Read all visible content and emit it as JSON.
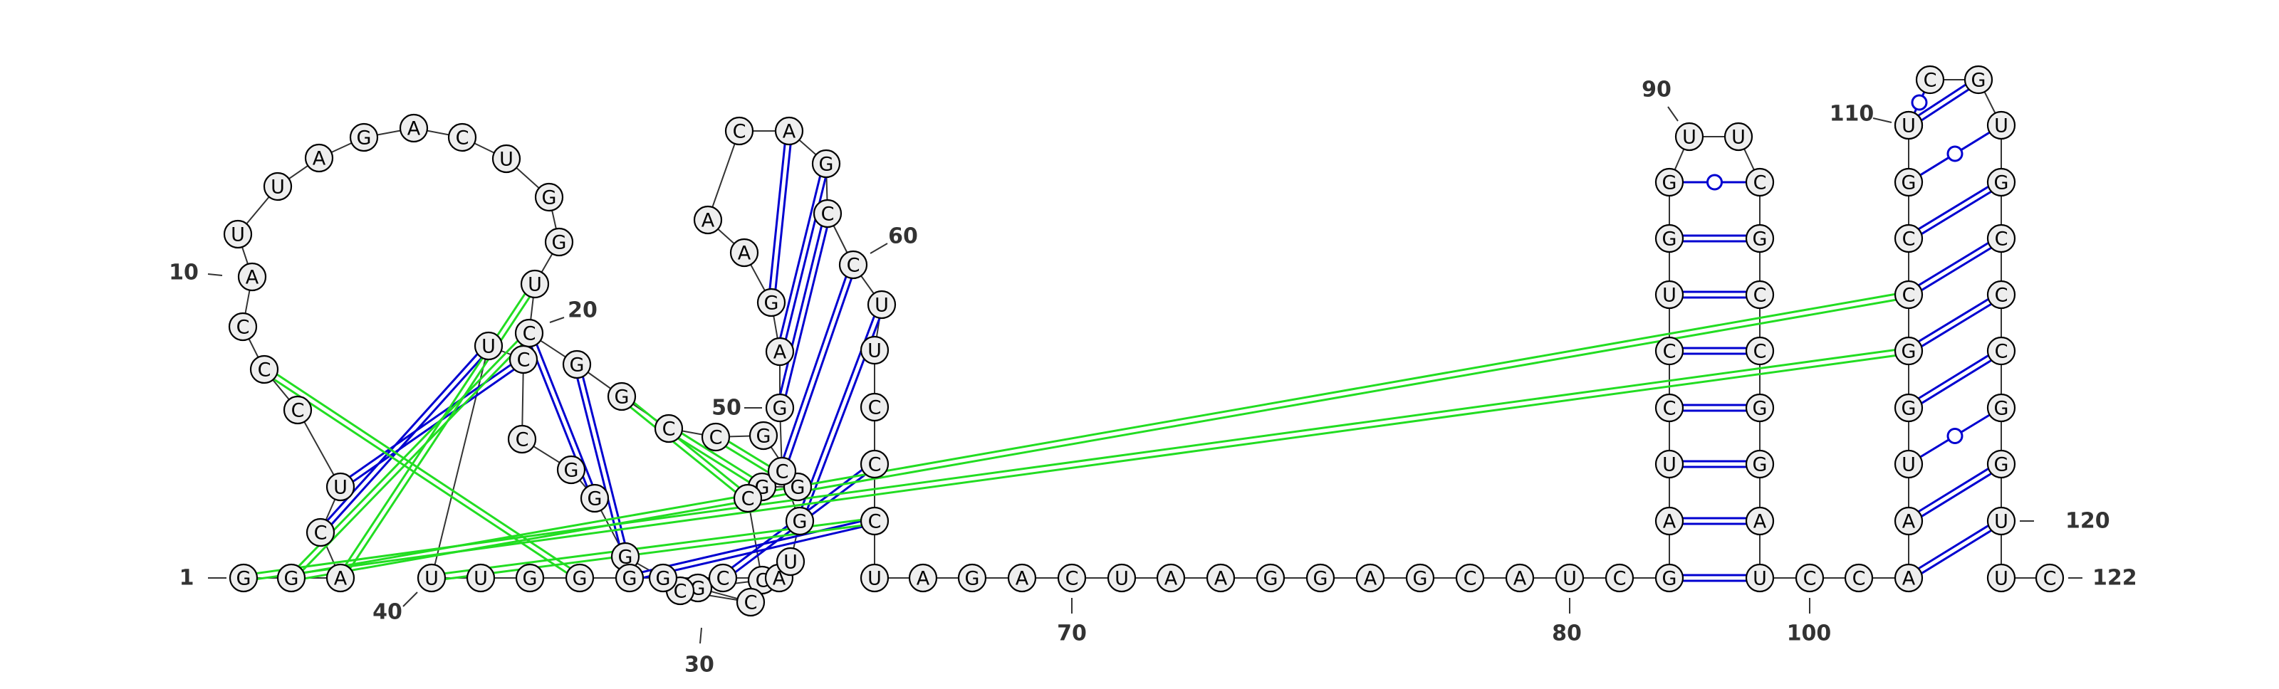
{
  "colors": {
    "canonical_pair": "#0000d0",
    "wobble_pair": "#0000d0",
    "pseudoknot_pair": "#22dd22",
    "nucleotide_fill": "#eeeeee",
    "nucleotide_stroke": "#000000",
    "label": "#333333"
  },
  "nucleotides": [
    {
      "i": 1,
      "b": "G"
    },
    {
      "i": 2,
      "b": "G"
    },
    {
      "i": 3,
      "b": "A"
    },
    {
      "i": 4,
      "b": "C"
    },
    {
      "i": 5,
      "b": "U"
    },
    {
      "i": 6,
      "b": "C"
    },
    {
      "i": 7,
      "b": "C"
    },
    {
      "i": 8,
      "b": "C"
    },
    {
      "i": 9,
      "b": "A"
    },
    {
      "i": 10,
      "b": "U"
    },
    {
      "i": 11,
      "b": "U"
    },
    {
      "i": 12,
      "b": "A"
    },
    {
      "i": 13,
      "b": "G"
    },
    {
      "i": 14,
      "b": "A"
    },
    {
      "i": 15,
      "b": "C"
    },
    {
      "i": 16,
      "b": "U"
    },
    {
      "i": 17,
      "b": "G"
    },
    {
      "i": 18,
      "b": "G"
    },
    {
      "i": 19,
      "b": "U"
    },
    {
      "i": 20,
      "b": "C"
    },
    {
      "i": 21,
      "b": "G"
    },
    {
      "i": 22,
      "b": "G"
    },
    {
      "i": 23,
      "b": "C"
    },
    {
      "i": 24,
      "b": "C"
    },
    {
      "i": 25,
      "b": "G"
    },
    {
      "i": 26,
      "b": "G"
    },
    {
      "i": 27,
      "b": "G"
    },
    {
      "i": 28,
      "b": "C"
    },
    {
      "i": 29,
      "b": "C"
    },
    {
      "i": 30,
      "b": "G"
    },
    {
      "i": 31,
      "b": "C"
    },
    {
      "i": 32,
      "b": "C"
    },
    {
      "i": 33,
      "b": "G"
    },
    {
      "i": 34,
      "b": "G"
    },
    {
      "i": 35,
      "b": "G"
    },
    {
      "i": 36,
      "b": "G"
    },
    {
      "i": 37,
      "b": "C"
    },
    {
      "i": 38,
      "b": "C"
    },
    {
      "i": 39,
      "b": "U"
    },
    {
      "i": 40,
      "b": "U"
    },
    {
      "i": 41,
      "b": "U"
    },
    {
      "i": 42,
      "b": "G"
    },
    {
      "i": 43,
      "b": "G"
    },
    {
      "i": 44,
      "b": "G"
    },
    {
      "i": 45,
      "b": "C"
    },
    {
      "i": 46,
      "b": "A"
    },
    {
      "i": 47,
      "b": "U"
    },
    {
      "i": 48,
      "b": "G"
    },
    {
      "i": 49,
      "b": "C"
    },
    {
      "i": 50,
      "b": "G"
    },
    {
      "i": 51,
      "b": "A"
    },
    {
      "i": 52,
      "b": "G"
    },
    {
      "i": 53,
      "b": "A"
    },
    {
      "i": 54,
      "b": "A"
    },
    {
      "i": 55,
      "b": "C"
    },
    {
      "i": 56,
      "b": "A"
    },
    {
      "i": 57,
      "b": "G"
    },
    {
      "i": 58,
      "b": "C"
    },
    {
      "i": 59,
      "b": "C"
    },
    {
      "i": 60,
      "b": "U"
    },
    {
      "i": 61,
      "b": "U"
    },
    {
      "i": 62,
      "b": "C"
    },
    {
      "i": 63,
      "b": "C"
    },
    {
      "i": 64,
      "b": "C"
    },
    {
      "i": 65,
      "b": "U"
    },
    {
      "i": 66,
      "b": "A"
    },
    {
      "i": 67,
      "b": "G"
    },
    {
      "i": 68,
      "b": "A"
    },
    {
      "i": 69,
      "b": "C"
    },
    {
      "i": 70,
      "b": "U"
    },
    {
      "i": 71,
      "b": "A"
    },
    {
      "i": 72,
      "b": "A"
    },
    {
      "i": 73,
      "b": "G"
    },
    {
      "i": 74,
      "b": "G"
    },
    {
      "i": 75,
      "b": "A"
    },
    {
      "i": 76,
      "b": "G"
    },
    {
      "i": 77,
      "b": "C"
    },
    {
      "i": 78,
      "b": "A"
    },
    {
      "i": 79,
      "b": "U"
    },
    {
      "i": 80,
      "b": "C"
    },
    {
      "i": 81,
      "b": "G"
    },
    {
      "i": 82,
      "b": "A"
    },
    {
      "i": 83,
      "b": "U"
    },
    {
      "i": 84,
      "b": "C"
    },
    {
      "i": 85,
      "b": "C"
    },
    {
      "i": 86,
      "b": "U"
    },
    {
      "i": 87,
      "b": "G"
    },
    {
      "i": 88,
      "b": "G"
    },
    {
      "i": 89,
      "b": "U"
    },
    {
      "i": 90,
      "b": "U"
    },
    {
      "i": 91,
      "b": "C"
    },
    {
      "i": 92,
      "b": "G"
    },
    {
      "i": 93,
      "b": "C"
    },
    {
      "i": 94,
      "b": "C"
    },
    {
      "i": 95,
      "b": "G"
    },
    {
      "i": 96,
      "b": "G"
    },
    {
      "i": 97,
      "b": "A"
    },
    {
      "i": 98,
      "b": "U"
    },
    {
      "i": 99,
      "b": "C"
    },
    {
      "i": 100,
      "b": "C"
    },
    {
      "i": 101,
      "b": "A"
    },
    {
      "i": 102,
      "b": "A"
    },
    {
      "i": 103,
      "b": "U"
    },
    {
      "i": 104,
      "b": "G"
    },
    {
      "i": 105,
      "b": "G"
    },
    {
      "i": 106,
      "b": "C"
    },
    {
      "i": 107,
      "b": "C"
    },
    {
      "i": 108,
      "b": "G"
    },
    {
      "i": 109,
      "b": "U"
    },
    {
      "i": 110,
      "b": "U"
    },
    {
      "i": 111,
      "b": "C"
    },
    {
      "i": 112,
      "b": "G"
    },
    {
      "i": 113,
      "b": "U"
    },
    {
      "i": 114,
      "b": "G"
    },
    {
      "i": 115,
      "b": "C"
    },
    {
      "i": 116,
      "b": "C"
    },
    {
      "i": 117,
      "b": "C"
    },
    {
      "i": 118,
      "b": "G"
    },
    {
      "i": 119,
      "b": "G"
    },
    {
      "i": 120,
      "b": "U"
    },
    {
      "i": 121,
      "b": "U"
    },
    {
      "i": 122,
      "b": "C"
    }
  ],
  "pairs": [
    {
      "a": 4,
      "b": 39,
      "type": "canonical"
    },
    {
      "a": 5,
      "b": 38,
      "type": "canonical"
    },
    {
      "a": 20,
      "b": 35,
      "type": "canonical"
    },
    {
      "a": 21,
      "b": 34,
      "type": "canonical"
    },
    {
      "a": 44,
      "b": 64,
      "type": "canonical"
    },
    {
      "a": 45,
      "b": 63,
      "type": "canonical"
    },
    {
      "a": 48,
      "b": 60,
      "type": "canonical"
    },
    {
      "a": 49,
      "b": 59,
      "type": "canonical"
    },
    {
      "a": 50,
      "b": 58,
      "type": "canonical"
    },
    {
      "a": 51,
      "b": 57,
      "type": "canonical"
    },
    {
      "a": 52,
      "b": 56,
      "type": "canonical"
    },
    {
      "a": 81,
      "b": 98,
      "type": "canonical"
    },
    {
      "a": 82,
      "b": 97,
      "type": "canonical"
    },
    {
      "a": 83,
      "b": 96,
      "type": "canonical"
    },
    {
      "a": 84,
      "b": 95,
      "type": "canonical"
    },
    {
      "a": 85,
      "b": 94,
      "type": "canonical"
    },
    {
      "a": 86,
      "b": 93,
      "type": "canonical"
    },
    {
      "a": 87,
      "b": 92,
      "type": "canonical"
    },
    {
      "a": 88,
      "b": 91,
      "type": "wobble"
    },
    {
      "a": 101,
      "b": 120,
      "type": "canonical"
    },
    {
      "a": 102,
      "b": 119,
      "type": "canonical"
    },
    {
      "a": 103,
      "b": 118,
      "type": "wobble"
    },
    {
      "a": 104,
      "b": 117,
      "type": "canonical"
    },
    {
      "a": 105,
      "b": 116,
      "type": "canonical"
    },
    {
      "a": 106,
      "b": 115,
      "type": "canonical"
    },
    {
      "a": 107,
      "b": 114,
      "type": "canonical"
    },
    {
      "a": 108,
      "b": 113,
      "type": "wobble"
    },
    {
      "a": 109,
      "b": 112,
      "type": "canonical"
    },
    {
      "a": 110,
      "b": 111,
      "type": "wobble"
    },
    {
      "a": 7,
      "b": 43,
      "type": "pseudoknot"
    },
    {
      "a": 2,
      "b": 20,
      "type": "pseudoknot"
    },
    {
      "a": 3,
      "b": 19,
      "type": "pseudoknot"
    },
    {
      "a": 22,
      "b": 28,
      "type": "pseudoknot"
    },
    {
      "a": 23,
      "b": 27,
      "type": "pseudoknot"
    },
    {
      "a": 24,
      "b": 26,
      "type": "pseudoknot"
    },
    {
      "a": 40,
      "b": 64,
      "type": "pseudoknot"
    },
    {
      "a": 1,
      "b": 105,
      "type": "pseudoknot"
    },
    {
      "a": 2,
      "b": 106,
      "type": "pseudoknot"
    }
  ],
  "position_labels": [
    {
      "i": 1,
      "text": "1"
    },
    {
      "i": 10,
      "text": "10"
    },
    {
      "i": 20,
      "text": "20"
    },
    {
      "i": 30,
      "text": "30"
    },
    {
      "i": 40,
      "text": "40"
    },
    {
      "i": 50,
      "text": "50"
    },
    {
      "i": 60,
      "text": "60"
    },
    {
      "i": 70,
      "text": "70"
    },
    {
      "i": 80,
      "text": "80"
    },
    {
      "i": 90,
      "text": "90"
    },
    {
      "i": 100,
      "text": "100"
    },
    {
      "i": 110,
      "text": "110"
    },
    {
      "i": 120,
      "text": "120"
    },
    {
      "i": 122,
      "text": "122"
    }
  ]
}
